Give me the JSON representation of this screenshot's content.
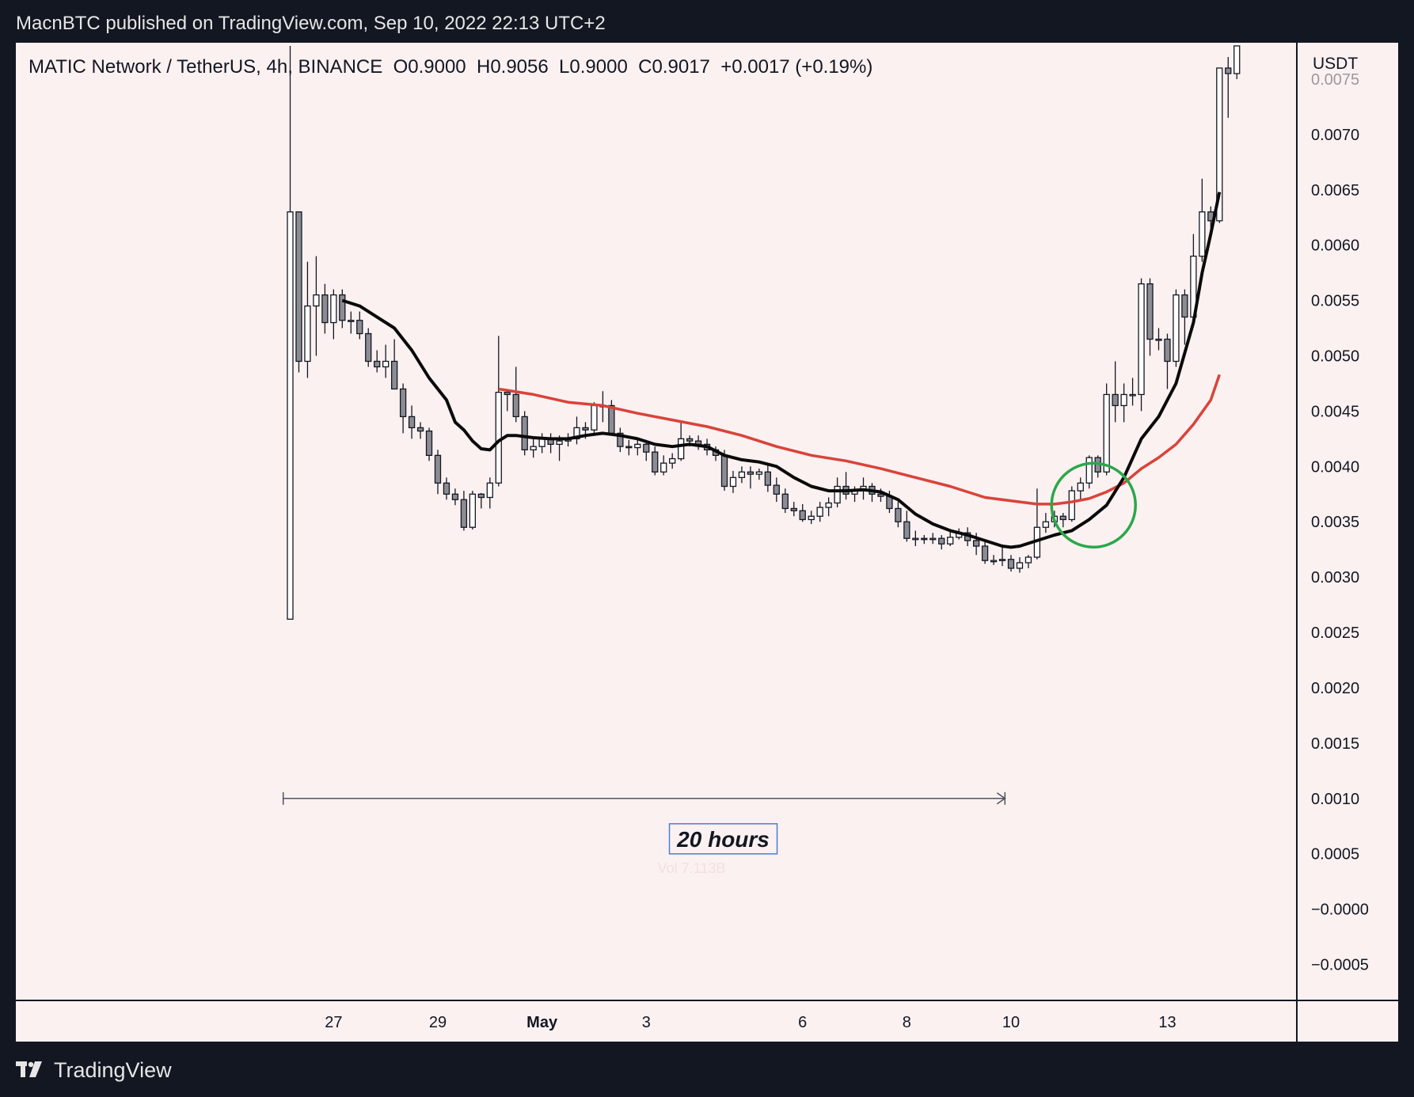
{
  "header": {
    "publisher": "MacnBTC published on TradingView.com, Sep 10, 2022 22:13 UTC+2"
  },
  "footer": {
    "brand": "TradingView"
  },
  "chart_data": {
    "type": "candlestick",
    "legend": "MATIC Network / TetherUS, 4h, BINANCE  O0.9000  H0.9056  L0.9000  C0.9017  +0.0017 (+0.19%)",
    "currency": "USDT",
    "ylim": [
      -0.0007,
      0.0078
    ],
    "y_ticks": [
      {
        "v": 0.0075,
        "label": "0.0075"
      },
      {
        "v": 0.007,
        "label": "0.0070"
      },
      {
        "v": 0.0065,
        "label": "0.0065"
      },
      {
        "v": 0.006,
        "label": "0.0060"
      },
      {
        "v": 0.0055,
        "label": "0.0055"
      },
      {
        "v": 0.005,
        "label": "0.0050"
      },
      {
        "v": 0.0045,
        "label": "0.0045"
      },
      {
        "v": 0.004,
        "label": "0.0040"
      },
      {
        "v": 0.0035,
        "label": "0.0035"
      },
      {
        "v": 0.003,
        "label": "0.0030"
      },
      {
        "v": 0.0025,
        "label": "0.0025"
      },
      {
        "v": 0.002,
        "label": "0.0020"
      },
      {
        "v": 0.0015,
        "label": "0.0015"
      },
      {
        "v": 0.001,
        "label": "0.0010"
      },
      {
        "v": 0.0005,
        "label": "0.0005"
      },
      {
        "v": 0.0,
        "label": "−0.0000"
      },
      {
        "v": -0.0005,
        "label": "−0.0005"
      }
    ],
    "x_ticks": [
      {
        "i": 5,
        "label": "27",
        "bold": false
      },
      {
        "i": 17,
        "label": "29",
        "bold": false
      },
      {
        "i": 29,
        "label": "May",
        "bold": true
      },
      {
        "i": 41,
        "label": "3",
        "bold": false
      },
      {
        "i": 59,
        "label": "6",
        "bold": false
      },
      {
        "i": 71,
        "label": "8",
        "bold": false
      },
      {
        "i": 83,
        "label": "10",
        "bold": false
      },
      {
        "i": 101,
        "label": "13",
        "bold": false
      }
    ],
    "candles": [
      [
        0.00262,
        0.0063,
        0.00262,
        0.0078
      ],
      [
        0.0063,
        0.00495,
        0.00485,
        0.0063
      ],
      [
        0.00495,
        0.00545,
        0.0048,
        0.00585
      ],
      [
        0.00545,
        0.00555,
        0.005,
        0.0059
      ],
      [
        0.00555,
        0.0053,
        0.0052,
        0.00565
      ],
      [
        0.0053,
        0.00555,
        0.00515,
        0.0056
      ],
      [
        0.00555,
        0.00532,
        0.00525,
        0.0056
      ],
      [
        0.00532,
        0.00532,
        0.0052,
        0.0054
      ],
      [
        0.00532,
        0.0052,
        0.00515,
        0.0054
      ],
      [
        0.0052,
        0.00495,
        0.0049,
        0.00525
      ],
      [
        0.00495,
        0.0049,
        0.00485,
        0.00505
      ],
      [
        0.0049,
        0.00495,
        0.0048,
        0.0051
      ],
      [
        0.00495,
        0.0047,
        0.0047,
        0.00515
      ],
      [
        0.0047,
        0.00445,
        0.0043,
        0.00475
      ],
      [
        0.00445,
        0.00435,
        0.00425,
        0.00455
      ],
      [
        0.00435,
        0.00432,
        0.00425,
        0.0044
      ],
      [
        0.00432,
        0.0041,
        0.00405,
        0.00435
      ],
      [
        0.0041,
        0.00385,
        0.00375,
        0.00415
      ],
      [
        0.00385,
        0.00375,
        0.0037,
        0.0039
      ],
      [
        0.00375,
        0.0037,
        0.00365,
        0.0038
      ],
      [
        0.0037,
        0.00345,
        0.00342,
        0.00378
      ],
      [
        0.00345,
        0.00375,
        0.00343,
        0.00378
      ],
      [
        0.00375,
        0.00372,
        0.00362,
        0.00376
      ],
      [
        0.00372,
        0.00385,
        0.00362,
        0.0039
      ],
      [
        0.00385,
        0.00467,
        0.00382,
        0.00518
      ],
      [
        0.00467,
        0.00465,
        0.0045,
        0.0047
      ],
      [
        0.00465,
        0.00445,
        0.0044,
        0.0049
      ],
      [
        0.00445,
        0.00415,
        0.0041,
        0.0045
      ],
      [
        0.00415,
        0.00418,
        0.00408,
        0.00425
      ],
      [
        0.00418,
        0.00425,
        0.00412,
        0.0043
      ],
      [
        0.00425,
        0.0042,
        0.00412,
        0.0043
      ],
      [
        0.0042,
        0.00423,
        0.00405,
        0.00428
      ],
      [
        0.00423,
        0.00425,
        0.00418,
        0.0043
      ],
      [
        0.00425,
        0.00435,
        0.0042,
        0.00445
      ],
      [
        0.00435,
        0.00433,
        0.00425,
        0.0044
      ],
      [
        0.00433,
        0.00455,
        0.0043,
        0.00458
      ],
      [
        0.00455,
        0.00455,
        0.0044,
        0.00468
      ],
      [
        0.00455,
        0.0043,
        0.00428,
        0.0046
      ],
      [
        0.0043,
        0.00418,
        0.00413,
        0.00435
      ],
      [
        0.00418,
        0.00417,
        0.0041,
        0.00424
      ],
      [
        0.00417,
        0.0042,
        0.0041,
        0.00424
      ],
      [
        0.0042,
        0.00413,
        0.00405,
        0.00424
      ],
      [
        0.00413,
        0.00395,
        0.00392,
        0.00418
      ],
      [
        0.00395,
        0.00403,
        0.00392,
        0.0041
      ],
      [
        0.00403,
        0.00407,
        0.00398,
        0.00412
      ],
      [
        0.00407,
        0.00425,
        0.00405,
        0.0044
      ],
      [
        0.00425,
        0.00423,
        0.00418,
        0.00428
      ],
      [
        0.00423,
        0.0042,
        0.00415,
        0.00428
      ],
      [
        0.0042,
        0.00415,
        0.0041,
        0.00425
      ],
      [
        0.00415,
        0.0041,
        0.00405,
        0.00418
      ],
      [
        0.0041,
        0.00382,
        0.00378,
        0.00415
      ],
      [
        0.00382,
        0.0039,
        0.00376,
        0.00396
      ],
      [
        0.0039,
        0.00395,
        0.00385,
        0.004
      ],
      [
        0.00395,
        0.00393,
        0.0038,
        0.004
      ],
      [
        0.00393,
        0.00395,
        0.00388,
        0.00398
      ],
      [
        0.00395,
        0.00383,
        0.00377,
        0.00402
      ],
      [
        0.00383,
        0.00375,
        0.00368,
        0.0039
      ],
      [
        0.00375,
        0.00362,
        0.00358,
        0.0038
      ],
      [
        0.00362,
        0.0036,
        0.00355,
        0.00368
      ],
      [
        0.0036,
        0.00352,
        0.0035,
        0.00366
      ],
      [
        0.00352,
        0.00355,
        0.00348,
        0.0036
      ],
      [
        0.00355,
        0.00363,
        0.0035,
        0.00368
      ],
      [
        0.00363,
        0.00367,
        0.00355,
        0.00372
      ],
      [
        0.00367,
        0.00382,
        0.00363,
        0.0039
      ],
      [
        0.00382,
        0.00375,
        0.0037,
        0.00395
      ],
      [
        0.00375,
        0.00378,
        0.00368,
        0.00382
      ],
      [
        0.00378,
        0.00382,
        0.0037,
        0.0039
      ],
      [
        0.00382,
        0.00375,
        0.00368,
        0.00385
      ],
      [
        0.00375,
        0.00373,
        0.00368,
        0.0038
      ],
      [
        0.00373,
        0.00362,
        0.00358,
        0.00378
      ],
      [
        0.00362,
        0.0035,
        0.00345,
        0.00368
      ],
      [
        0.0035,
        0.00335,
        0.00332,
        0.0036
      ],
      [
        0.00335,
        0.00335,
        0.00328,
        0.00342
      ],
      [
        0.00335,
        0.00334,
        0.0033,
        0.00338
      ],
      [
        0.00334,
        0.00335,
        0.0033,
        0.0034
      ],
      [
        0.00335,
        0.0033,
        0.00325,
        0.00338
      ],
      [
        0.0033,
        0.00336,
        0.00328,
        0.00342
      ],
      [
        0.00336,
        0.0034,
        0.00334,
        0.00344
      ],
      [
        0.0034,
        0.00333,
        0.00328,
        0.00345
      ],
      [
        0.00333,
        0.00328,
        0.0032,
        0.0034
      ],
      [
        0.00328,
        0.00315,
        0.00312,
        0.00332
      ],
      [
        0.00315,
        0.00315,
        0.00311,
        0.0032
      ],
      [
        0.00315,
        0.00316,
        0.0031,
        0.00328
      ],
      [
        0.00316,
        0.00308,
        0.00305,
        0.0032
      ],
      [
        0.00308,
        0.00313,
        0.00304,
        0.00318
      ],
      [
        0.00313,
        0.00318,
        0.00308,
        0.0032
      ],
      [
        0.00318,
        0.00345,
        0.00316,
        0.0038
      ],
      [
        0.00345,
        0.0035,
        0.0034,
        0.00358
      ],
      [
        0.0035,
        0.00355,
        0.00345,
        0.0036
      ],
      [
        0.00355,
        0.00352,
        0.00345,
        0.00358
      ],
      [
        0.00352,
        0.00378,
        0.0035,
        0.00382
      ],
      [
        0.00378,
        0.00385,
        0.0037,
        0.0039
      ],
      [
        0.00385,
        0.00408,
        0.0038,
        0.0041
      ],
      [
        0.00408,
        0.00395,
        0.0039,
        0.0041
      ],
      [
        0.00395,
        0.00465,
        0.00392,
        0.00475
      ],
      [
        0.00465,
        0.00455,
        0.0044,
        0.00495
      ],
      [
        0.00455,
        0.00465,
        0.0044,
        0.00475
      ],
      [
        0.00465,
        0.00465,
        0.00455,
        0.0048
      ],
      [
        0.00465,
        0.00565,
        0.0045,
        0.0057
      ],
      [
        0.00565,
        0.00515,
        0.005,
        0.0057
      ],
      [
        0.00515,
        0.00515,
        0.00505,
        0.00525
      ],
      [
        0.00515,
        0.00495,
        0.0047,
        0.0052
      ],
      [
        0.00495,
        0.00555,
        0.0049,
        0.0056
      ],
      [
        0.00555,
        0.00535,
        0.0051,
        0.0056
      ],
      [
        0.00535,
        0.0059,
        0.0053,
        0.0061
      ],
      [
        0.0059,
        0.0063,
        0.00585,
        0.0066
      ],
      [
        0.0063,
        0.00622,
        0.00615,
        0.00635
      ],
      [
        0.00622,
        0.0076,
        0.0062,
        0.0076
      ],
      [
        0.0076,
        0.00755,
        0.00715,
        0.0077
      ],
      [
        0.00755,
        0.0078,
        0.0075,
        0.0078
      ]
    ],
    "ma_fast": [
      [
        6,
        0.0055
      ],
      [
        8,
        0.00545
      ],
      [
        10,
        0.00535
      ],
      [
        12,
        0.00525
      ],
      [
        14,
        0.00505
      ],
      [
        16,
        0.0048
      ],
      [
        18,
        0.0046
      ],
      [
        19,
        0.0044
      ],
      [
        20,
        0.00433
      ],
      [
        21,
        0.00423
      ],
      [
        22,
        0.00416
      ],
      [
        23,
        0.00415
      ],
      [
        24,
        0.00423
      ],
      [
        25,
        0.00428
      ],
      [
        26,
        0.00428
      ],
      [
        28,
        0.00426
      ],
      [
        30,
        0.00425
      ],
      [
        32,
        0.00425
      ],
      [
        34,
        0.00428
      ],
      [
        36,
        0.0043
      ],
      [
        38,
        0.00428
      ],
      [
        40,
        0.00425
      ],
      [
        42,
        0.0042
      ],
      [
        44,
        0.00418
      ],
      [
        46,
        0.0042
      ],
      [
        48,
        0.00418
      ],
      [
        50,
        0.0041
      ],
      [
        52,
        0.00406
      ],
      [
        54,
        0.00404
      ],
      [
        56,
        0.004
      ],
      [
        58,
        0.0039
      ],
      [
        60,
        0.00382
      ],
      [
        62,
        0.00378
      ],
      [
        64,
        0.00378
      ],
      [
        66,
        0.00379
      ],
      [
        68,
        0.00377
      ],
      [
        70,
        0.0037
      ],
      [
        72,
        0.00357
      ],
      [
        74,
        0.00348
      ],
      [
        76,
        0.00342
      ],
      [
        78,
        0.00338
      ],
      [
        80,
        0.00333
      ],
      [
        82,
        0.00328
      ],
      [
        83,
        0.00327
      ],
      [
        84,
        0.00328
      ],
      [
        86,
        0.00333
      ],
      [
        88,
        0.00338
      ],
      [
        90,
        0.00342
      ],
      [
        92,
        0.00352
      ],
      [
        94,
        0.00365
      ],
      [
        96,
        0.0039
      ],
      [
        98,
        0.00425
      ],
      [
        100,
        0.00445
      ],
      [
        102,
        0.00475
      ],
      [
        104,
        0.0053
      ],
      [
        105,
        0.00575
      ],
      [
        106,
        0.0061
      ],
      [
        107,
        0.00648
      ]
    ],
    "ma_slow": [
      [
        24,
        0.0047
      ],
      [
        28,
        0.00465
      ],
      [
        32,
        0.00458
      ],
      [
        36,
        0.00455
      ],
      [
        40,
        0.00448
      ],
      [
        44,
        0.00442
      ],
      [
        48,
        0.00436
      ],
      [
        52,
        0.00428
      ],
      [
        56,
        0.00418
      ],
      [
        60,
        0.0041
      ],
      [
        64,
        0.00405
      ],
      [
        68,
        0.00398
      ],
      [
        72,
        0.0039
      ],
      [
        76,
        0.00382
      ],
      [
        80,
        0.00372
      ],
      [
        84,
        0.00368
      ],
      [
        86,
        0.00366
      ],
      [
        88,
        0.00366
      ],
      [
        90,
        0.00368
      ],
      [
        92,
        0.00371
      ],
      [
        94,
        0.00377
      ],
      [
        96,
        0.00385
      ],
      [
        98,
        0.00398
      ],
      [
        100,
        0.00408
      ],
      [
        102,
        0.0042
      ],
      [
        104,
        0.00438
      ],
      [
        106,
        0.0046
      ],
      [
        107,
        0.00483
      ]
    ],
    "annotations": {
      "range_label": "20 hours",
      "range_start_i": -0.8,
      "range_end_i": 82.3,
      "range_y": 0.001,
      "circle_center_i": 92.5,
      "circle_center_v": 0.00365,
      "ghost_label": "Vol 7.113B"
    },
    "colors": {
      "background": "#fcf1f1",
      "bull_fill": "#ffffff",
      "bear_fill": "#8c8c94",
      "candle_border": "#131722",
      "ma_fast": "#0a0a0a",
      "ma_slow": "#d9433a",
      "circle": "#2aa84a",
      "range_box": "#4a7fd6"
    }
  }
}
